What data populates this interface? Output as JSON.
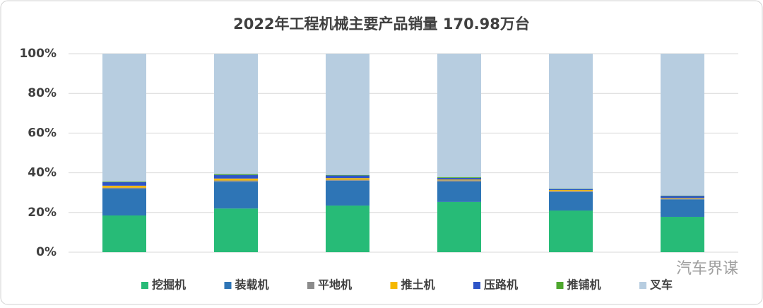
{
  "chart_data": {
    "type": "stacked-bar-100",
    "title": "2022年工程机械主要产品销量 170.98万台",
    "categories": [
      null,
      null,
      null,
      null,
      null,
      null
    ],
    "series": [
      {
        "name": "挖掘机",
        "color": "#27bb77",
        "values": [
          18.5,
          22.0,
          23.5,
          25.3,
          21.0,
          17.8
        ]
      },
      {
        "name": "装载机",
        "color": "#2e75b6",
        "values": [
          13.5,
          13.5,
          12.5,
          10.3,
          9.3,
          8.8
        ]
      },
      {
        "name": "平地机",
        "color": "#8c8c8c",
        "values": [
          0.5,
          0.6,
          0.5,
          0.6,
          0.6,
          0.4
        ]
      },
      {
        "name": "推土机",
        "color": "#f5b800",
        "values": [
          1.0,
          1.0,
          0.8,
          0.4,
          0.4,
          0.3
        ]
      },
      {
        "name": "压路机",
        "color": "#2e55c8",
        "values": [
          1.8,
          1.8,
          1.3,
          0.8,
          0.5,
          1.0
        ]
      },
      {
        "name": "推铺机",
        "color": "#4ea72e",
        "values": [
          0.3,
          0.5,
          0.3,
          0.4,
          0.2,
          0.2
        ]
      },
      {
        "name": "叉车",
        "color": "#b7cde0",
        "values": [
          64.4,
          60.6,
          61.1,
          62.2,
          68.0,
          71.5
        ]
      }
    ],
    "ylim": [
      0,
      100
    ],
    "yticks": [
      {
        "value": 0,
        "label": "0%"
      },
      {
        "value": 20,
        "label": "20%"
      },
      {
        "value": 40,
        "label": "40%"
      },
      {
        "value": 60,
        "label": "60%"
      },
      {
        "value": 80,
        "label": "80%"
      },
      {
        "value": 100,
        "label": "100%"
      }
    ],
    "grid": true,
    "legend": "bottom"
  },
  "watermark": "汽车界谋"
}
